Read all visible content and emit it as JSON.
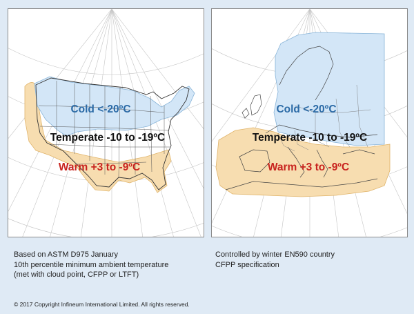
{
  "colors": {
    "cold": "#2b6aa6",
    "temperate": "#111111",
    "warm": "#c8231e",
    "cold_fill": "#d3e6f7",
    "warm_fill": "#f7ddb0",
    "background": "#dfeaf5"
  },
  "us_map": {
    "cold_label": "Cold <-20ºC",
    "temperate_label": "Temperate -10 to -19ºC",
    "warm_label": "Warm +3 to -9ºC",
    "caption_lines": [
      "Based on ASTM D975 January",
      "10th percentile minimum ambient temperature",
      "(met with cloud point, CFPP or LTFT)"
    ]
  },
  "europe_map": {
    "cold_label": "Cold <-20ºC",
    "temperate_label": "Temperate -10 to -19ºC",
    "warm_label": "Warm +3 to -9ºC",
    "caption_lines": [
      "Controlled by winter EN590 country",
      "CFPP specification"
    ]
  },
  "copyright": "© 2017 Copyright Infineum International Limited. All rights reserved."
}
